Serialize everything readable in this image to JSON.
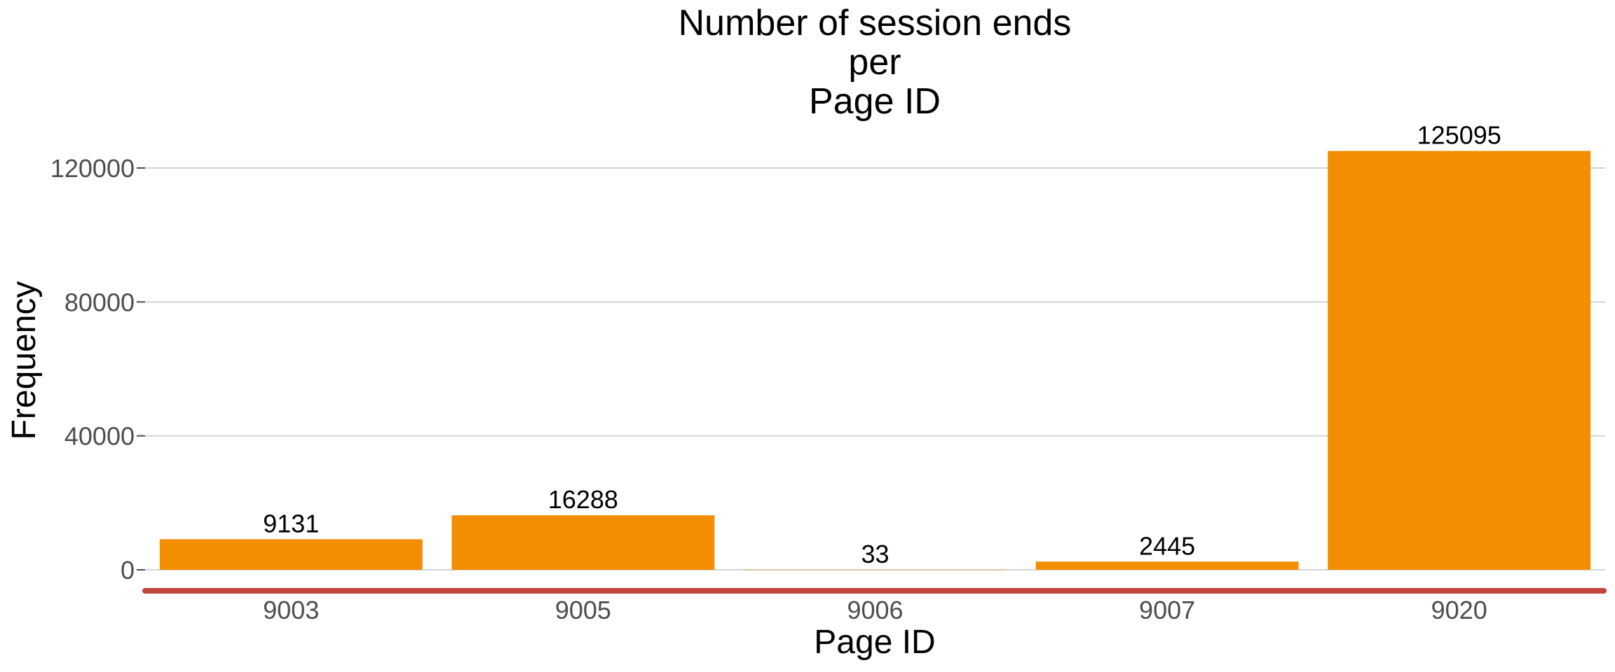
{
  "colors": {
    "bar": "#f28e00",
    "gridline": "#d4d4d4",
    "baseline": "#c0443a",
    "tick_text": "#4d4d4d"
  },
  "chart_data": {
    "type": "bar",
    "title_lines": [
      "Number of session ends",
      "per",
      "Page ID"
    ],
    "xlabel": "Page ID",
    "ylabel": "Frequency",
    "categories": [
      "9003",
      "9005",
      "9006",
      "9007",
      "9020"
    ],
    "values": [
      9131,
      16288,
      33,
      2445,
      125095
    ],
    "value_labels": [
      "9131",
      "16288",
      "33",
      "2445",
      "125095"
    ],
    "yticks": [
      0,
      40000,
      80000,
      120000
    ],
    "ytick_labels": [
      "0",
      "40000",
      "80000",
      "120000"
    ],
    "ylim": [
      0,
      125095
    ],
    "grid": "horizontal",
    "legend": "none"
  }
}
